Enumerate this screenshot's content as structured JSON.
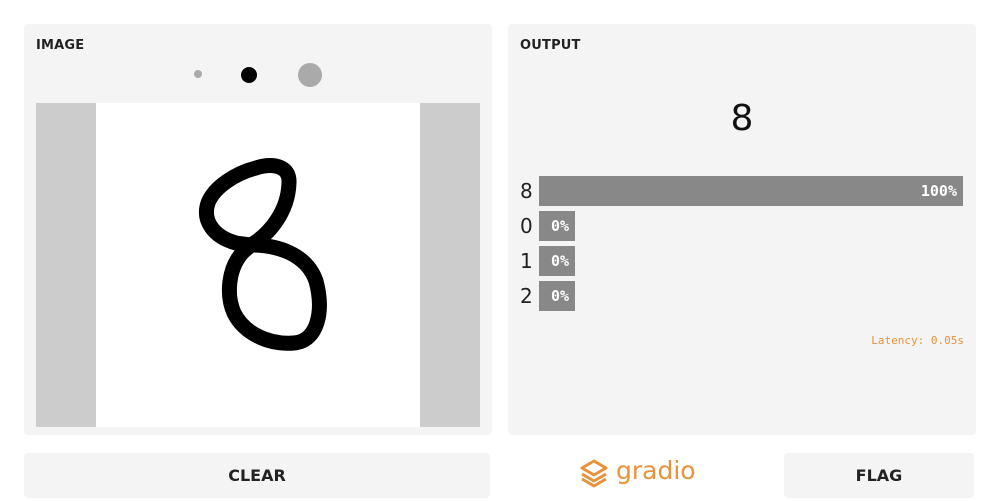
{
  "input_panel": {
    "title": "IMAGE",
    "brush_sizes": [
      "small",
      "medium",
      "large"
    ],
    "selected_brush": "medium"
  },
  "output_panel": {
    "title": "OUTPUT",
    "prediction": "8",
    "confidences": [
      {
        "label": "8",
        "value": 1.0,
        "pct": "100%"
      },
      {
        "label": "0",
        "value": 0.0,
        "pct": "0%"
      },
      {
        "label": "1",
        "value": 0.0,
        "pct": "0%"
      },
      {
        "label": "2",
        "value": 0.0,
        "pct": "0%"
      }
    ],
    "latency": "Latency: 0.05s"
  },
  "buttons": {
    "clear": "CLEAR",
    "flag": "FLAG"
  },
  "branding": {
    "name": "gradio",
    "color": "#e8923b"
  },
  "colors": {
    "panel_bg": "#f4f4f4",
    "bar": "#888888",
    "canvas_side": "#cccccc"
  }
}
